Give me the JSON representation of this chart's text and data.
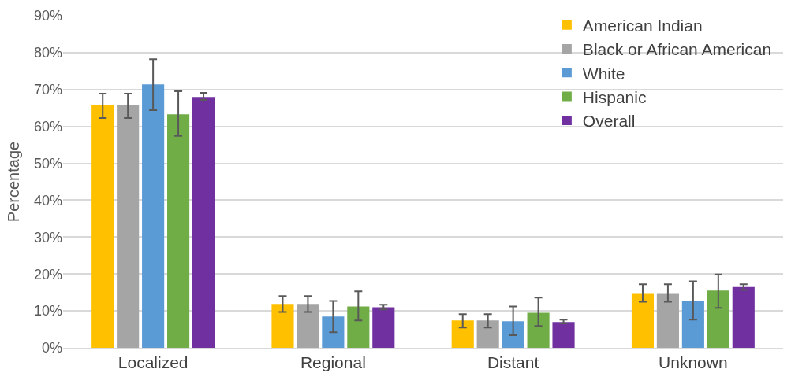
{
  "chart_data": {
    "type": "bar",
    "ylabel": "Percentage",
    "categories": [
      "Localized",
      "Regional",
      "Distant",
      "Unknown"
    ],
    "series": [
      {
        "name": "American Indian",
        "color": "#ffc000",
        "values": [
          65.7,
          11.9,
          7.4,
          14.8
        ],
        "errors": [
          [
            62.3,
            68.9
          ],
          [
            9.7,
            14.0
          ],
          [
            5.5,
            9.1
          ],
          [
            12.5,
            17.2
          ]
        ]
      },
      {
        "name": "Black or African American",
        "color": "#a5a5a5",
        "values": [
          65.7,
          11.9,
          7.4,
          14.8
        ],
        "errors": [
          [
            62.3,
            68.9
          ],
          [
            9.7,
            14.0
          ],
          [
            5.5,
            9.1
          ],
          [
            12.5,
            17.2
          ]
        ]
      },
      {
        "name": "White",
        "color": "#5b9bd5",
        "values": [
          71.4,
          8.5,
          7.2,
          12.7
        ],
        "errors": [
          [
            64.4,
            78.2
          ],
          [
            4.2,
            12.7
          ],
          [
            3.4,
            11.2
          ],
          [
            7.6,
            18.0
          ]
        ]
      },
      {
        "name": "Hispanic",
        "color": "#70ad47",
        "values": [
          63.3,
          11.2,
          9.5,
          15.5
        ],
        "errors": [
          [
            57.4,
            69.5
          ],
          [
            7.4,
            15.3
          ],
          [
            5.9,
            13.6
          ],
          [
            10.8,
            19.9
          ]
        ]
      },
      {
        "name": "Overall",
        "color": "#7030a0",
        "values": [
          68.0,
          11.0,
          7.0,
          16.5
        ],
        "errors": [
          [
            67.2,
            69.1
          ],
          [
            10.4,
            11.7
          ],
          [
            6.6,
            7.6
          ],
          [
            15.7,
            17.2
          ]
        ]
      }
    ],
    "ylim": [
      0,
      90
    ],
    "yticks": [
      {
        "value": 0,
        "label": "0%"
      },
      {
        "value": 10,
        "label": "10%"
      },
      {
        "value": 20,
        "label": "20%"
      },
      {
        "value": 30,
        "label": "30%"
      },
      {
        "value": 40,
        "label": "40%"
      },
      {
        "value": 50,
        "label": "50%"
      },
      {
        "value": 60,
        "label": "60%"
      },
      {
        "value": 70,
        "label": "70%"
      },
      {
        "value": 80,
        "label": "80%"
      },
      {
        "value": 90,
        "label": "90%"
      }
    ],
    "grid": "y",
    "legend": "top right"
  }
}
